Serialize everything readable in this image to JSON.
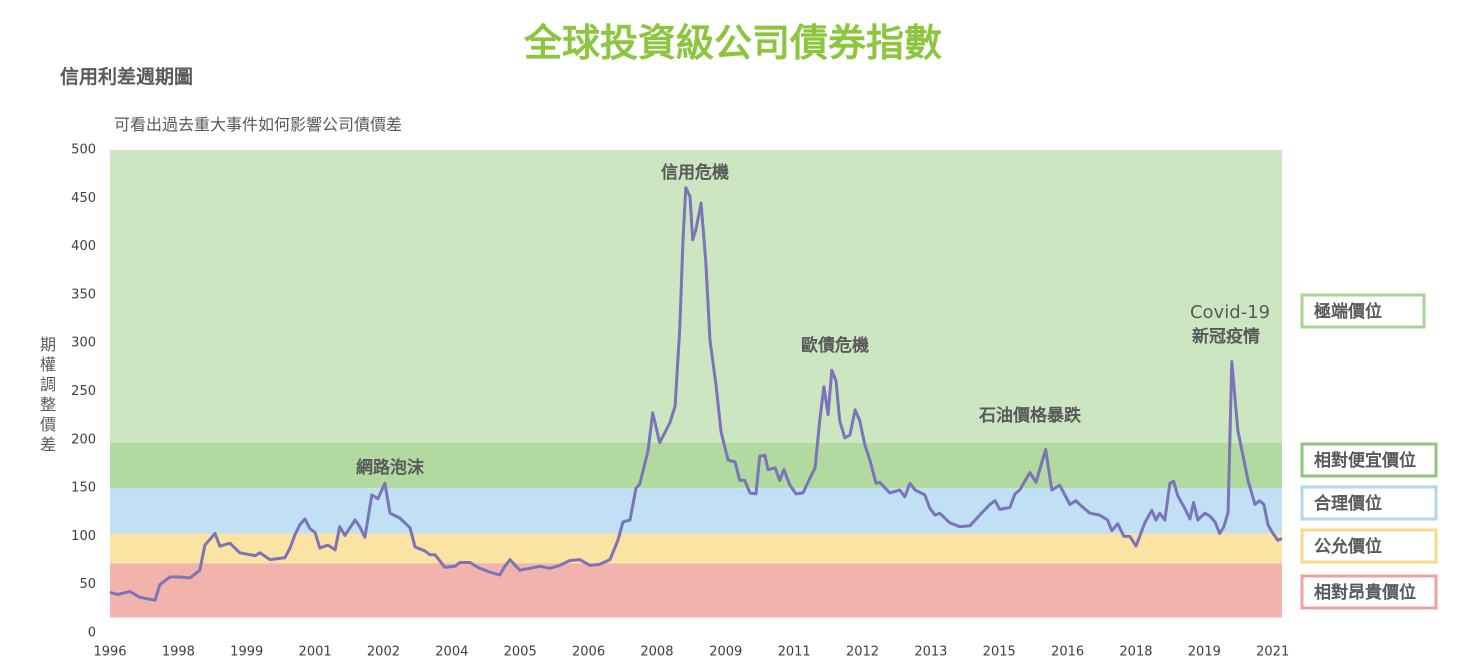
{
  "chart_data": {
    "type": "line",
    "title": "全球投資級公司債券指數",
    "subtitle": "信用利差週期圖",
    "description": "可看出過去重大事件如何影響公司債價差",
    "y_label": "期權調整價差",
    "color": "#7b74b8",
    "xlim": [
      1996,
      2021.2
    ],
    "ylim": [
      0,
      500
    ],
    "yticks": [
      0,
      50,
      100,
      150,
      200,
      250,
      300,
      350,
      400,
      450,
      500
    ],
    "xticks": [
      {
        "value": 1996,
        "label": "1996"
      },
      {
        "value": 1997.47,
        "label": "1998"
      },
      {
        "value": 1998.94,
        "label": "1999"
      },
      {
        "value": 2000.41,
        "label": "2001"
      },
      {
        "value": 2001.88,
        "label": "2002"
      },
      {
        "value": 2003.35,
        "label": "2004"
      },
      {
        "value": 2004.82,
        "label": "2005"
      },
      {
        "value": 2006.29,
        "label": "2006"
      },
      {
        "value": 2007.76,
        "label": "2008"
      },
      {
        "value": 2009.24,
        "label": "2009"
      },
      {
        "value": 2010.71,
        "label": "2011"
      },
      {
        "value": 2012.18,
        "label": "2012"
      },
      {
        "value": 2013.65,
        "label": "2013"
      },
      {
        "value": 2015.12,
        "label": "2015"
      },
      {
        "value": 2016.59,
        "label": "2016"
      },
      {
        "value": 2018.06,
        "label": "2018"
      },
      {
        "value": 2019.53,
        "label": "2019"
      },
      {
        "value": 2021,
        "label": "2021"
      }
    ],
    "bands": [
      {
        "name": "極端價位",
        "color": "#cde6c2",
        "border": "#a6d58f",
        "range": [
          197,
          500
        ]
      },
      {
        "name": "相對便宜價位",
        "color": "#b2d9a0",
        "border": "#8fc57c",
        "range": [
          150,
          197
        ]
      },
      {
        "name": "合理價位",
        "color": "#c1e0f4",
        "border": "#b3d6ef",
        "range": [
          103,
          150
        ]
      },
      {
        "name": "公允價位",
        "color": "#fbe3a3",
        "border": "#f8d98e",
        "range": [
          72,
          103
        ]
      },
      {
        "name": "相對昂貴價位",
        "color": "#f2b3ad",
        "border": "#eca59e",
        "range": [
          16,
          72
        ]
      }
    ],
    "annotations": [
      "網路泡沫",
      "信用危機",
      "歐債危機",
      "石油價格暴跌",
      "Covid-19",
      "新冠疫情"
    ],
    "x": [
      1996.0,
      1996.17,
      1996.43,
      1996.64,
      1996.97,
      1997.07,
      1997.29,
      1997.5,
      1997.72,
      1997.93,
      1998.04,
      1998.26,
      1998.36,
      1998.58,
      1998.79,
      1999.12,
      1999.22,
      1999.44,
      1999.76,
      1999.87,
      1999.98,
      2000.08,
      2000.19,
      2000.3,
      2000.41,
      2000.51,
      2000.69,
      2000.84,
      2000.94,
      2001.05,
      2001.27,
      2001.37,
      2001.48,
      2001.63,
      2001.76,
      2001.91,
      2002.02,
      2002.23,
      2002.45,
      2002.56,
      2002.77,
      2002.88,
      2002.99,
      2003.2,
      2003.42,
      2003.52,
      2003.74,
      2003.95,
      2004.17,
      2004.38,
      2004.49,
      2004.6,
      2004.81,
      2005.03,
      2005.24,
      2005.46,
      2005.67,
      2005.89,
      2006.1,
      2006.32,
      2006.53,
      2006.75,
      2006.92,
      2007.03,
      2007.18,
      2007.31,
      2007.39,
      2007.57,
      2007.67,
      2007.82,
      2008.04,
      2008.15,
      2008.25,
      2008.32,
      2008.38,
      2008.47,
      2008.53,
      2008.6,
      2008.71,
      2008.81,
      2008.9,
      2009.03,
      2009.14,
      2009.29,
      2009.44,
      2009.54,
      2009.65,
      2009.76,
      2009.89,
      2009.97,
      2010.08,
      2010.15,
      2010.3,
      2010.4,
      2010.49,
      2010.62,
      2010.75,
      2010.9,
      2011.05,
      2011.16,
      2011.26,
      2011.35,
      2011.44,
      2011.52,
      2011.61,
      2011.69,
      2011.8,
      2011.91,
      2012.02,
      2012.12,
      2012.23,
      2012.34,
      2012.47,
      2012.55,
      2012.77,
      2012.98,
      2013.09,
      2013.2,
      2013.31,
      2013.52,
      2013.63,
      2013.74,
      2013.84,
      2014.06,
      2014.27,
      2014.49,
      2014.7,
      2014.92,
      2015.03,
      2015.13,
      2015.35,
      2015.46,
      2015.56,
      2015.78,
      2015.91,
      2015.99,
      2016.12,
      2016.25,
      2016.42,
      2016.64,
      2016.77,
      2016.85,
      2017.07,
      2017.28,
      2017.45,
      2017.54,
      2017.67,
      2017.8,
      2017.93,
      2018.06,
      2018.14,
      2018.25,
      2018.4,
      2018.49,
      2018.57,
      2018.68,
      2018.79,
      2018.87,
      2018.96,
      2019.11,
      2019.22,
      2019.3,
      2019.39,
      2019.54,
      2019.65,
      2019.76,
      2019.86,
      2019.95,
      2020.04,
      2020.12,
      2020.25,
      2020.36,
      2020.47,
      2020.62,
      2020.72,
      2020.81,
      2020.9,
      2020.98,
      2021.11,
      2021.2
    ],
    "values": [
      42,
      40,
      43,
      37,
      34,
      50,
      58,
      58,
      57,
      65,
      91,
      103,
      90,
      93,
      83,
      80,
      83,
      76,
      78,
      88,
      102,
      112,
      118,
      108,
      104,
      88,
      91,
      86,
      110,
      101,
      117,
      110,
      99,
      143,
      139,
      155,
      124,
      119,
      109,
      89,
      85,
      81,
      81,
      68,
      69,
      73,
      73,
      67,
      63,
      60,
      69,
      76,
      65,
      67,
      69,
      67,
      70,
      75,
      76,
      70,
      71,
      76,
      96,
      115,
      117,
      150,
      154,
      189,
      228,
      197,
      218,
      235,
      314,
      407,
      461,
      452,
      407,
      418,
      445,
      384,
      303,
      257,
      208,
      179,
      177,
      158,
      158,
      145,
      144,
      183,
      184,
      169,
      171,
      158,
      169,
      153,
      144,
      145,
      160,
      171,
      220,
      255,
      226,
      272,
      261,
      220,
      202,
      205,
      231,
      220,
      195,
      179,
      155,
      156,
      145,
      148,
      141,
      155,
      148,
      143,
      129,
      122,
      124,
      114,
      110,
      111,
      122,
      133,
      137,
      128,
      130,
      144,
      148,
      166,
      156,
      169,
      190,
      148,
      153,
      133,
      137,
      133,
      124,
      122,
      117,
      106,
      113,
      100,
      100,
      90,
      100,
      114,
      127,
      117,
      124,
      117,
      155,
      157,
      142,
      129,
      118,
      135,
      117,
      124,
      121,
      115,
      103,
      110,
      125,
      281,
      210,
      184,
      158,
      133,
      137,
      133,
      112,
      105,
      96,
      98
    ]
  }
}
